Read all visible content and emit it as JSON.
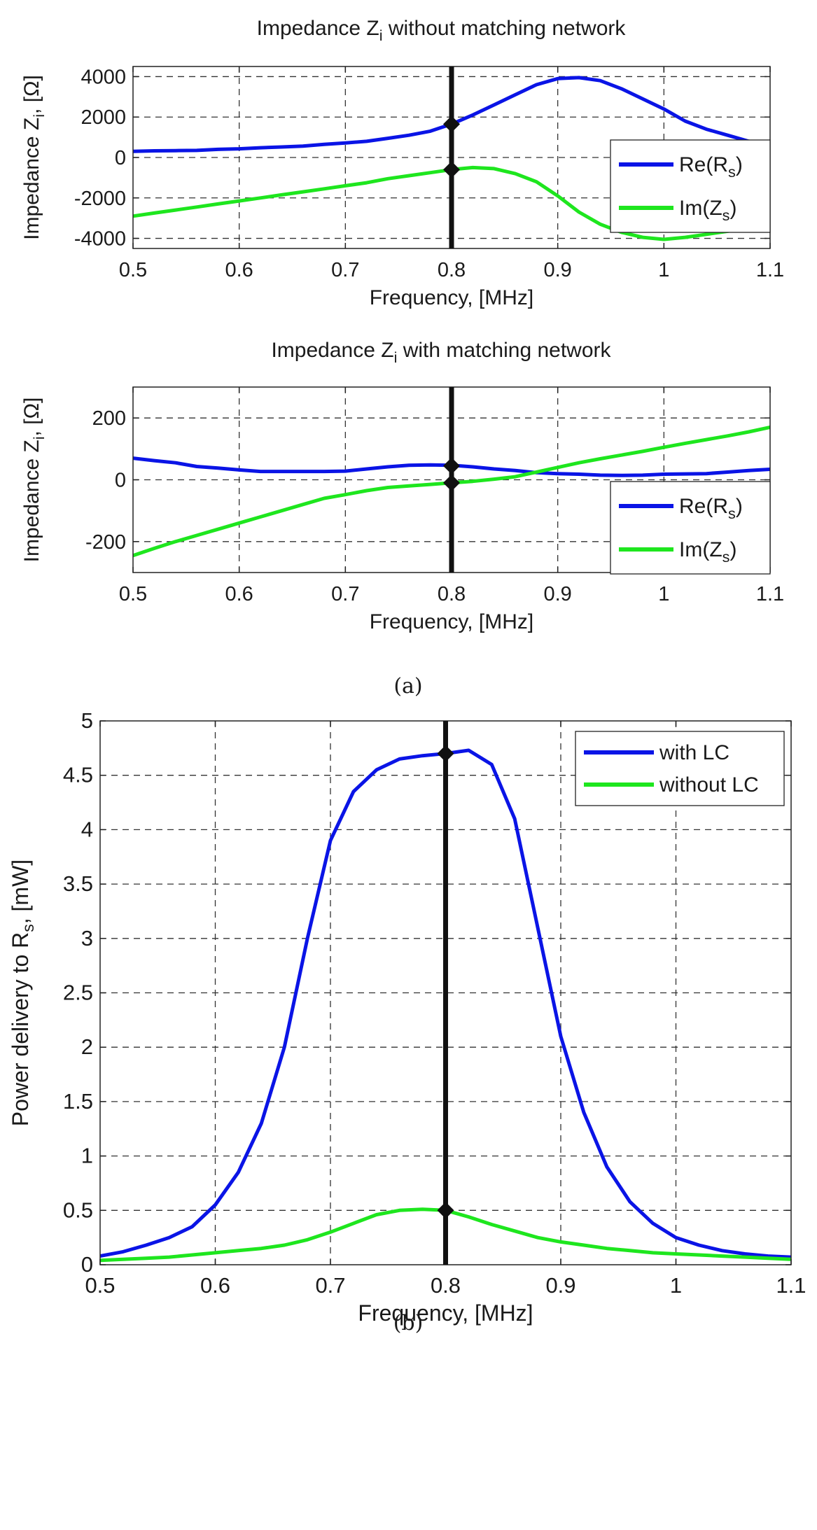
{
  "colors": {
    "re": "#0a14e6",
    "im": "#1ee61e",
    "marker": "#111111"
  },
  "chart_data": [
    {
      "type": "line",
      "title": {
        "pre": "Impedance Z",
        "sub": "i",
        "post": " without matching network"
      },
      "xlabel": "Frequency, [MHz]",
      "ylabel": {
        "pre": "Impedance Z",
        "sub": "i",
        "post": ", [Ω]"
      },
      "xlim": [
        0.5,
        1.1
      ],
      "ylim": [
        -4500,
        4500
      ],
      "xticks": [
        0.5,
        0.6,
        0.7,
        0.8,
        0.9,
        1,
        1.1
      ],
      "xtick_labels": [
        "0.5",
        "0.6",
        "0.7",
        "0.8",
        "0.9",
        "1",
        "1.1"
      ],
      "yticks": [
        4000,
        2000,
        0,
        -2000,
        -4000
      ],
      "ytick_labels": [
        "4000",
        "2000",
        "0",
        "-2000",
        "-4000"
      ],
      "grid": true,
      "legend_position": "lower-right",
      "vline_x": 0.8,
      "markers": [
        {
          "x": 0.8,
          "y": 1650
        },
        {
          "x": 0.8,
          "y": -600
        }
      ],
      "series": [
        {
          "name": {
            "pre": "Re(R",
            "sub": "s",
            "post": ")"
          },
          "color": "#0a14e6",
          "x": [
            0.5,
            0.52,
            0.54,
            0.56,
            0.58,
            0.6,
            0.62,
            0.64,
            0.66,
            0.68,
            0.7,
            0.72,
            0.74,
            0.76,
            0.78,
            0.8,
            0.82,
            0.84,
            0.86,
            0.88,
            0.9,
            0.92,
            0.94,
            0.96,
            0.98,
            1.0,
            1.02,
            1.04,
            1.06,
            1.08,
            1.1
          ],
          "y": [
            300,
            330,
            340,
            350,
            400,
            430,
            480,
            520,
            560,
            650,
            720,
            800,
            950,
            1100,
            1300,
            1650,
            2100,
            2600,
            3100,
            3600,
            3900,
            3950,
            3800,
            3400,
            2900,
            2400,
            1800,
            1400,
            1100,
            800,
            650
          ]
        },
        {
          "name": {
            "pre": "Im(Z",
            "sub": "s",
            "post": ")"
          },
          "color": "#1ee61e",
          "x": [
            0.5,
            0.52,
            0.54,
            0.56,
            0.58,
            0.6,
            0.62,
            0.64,
            0.66,
            0.68,
            0.7,
            0.72,
            0.74,
            0.76,
            0.78,
            0.8,
            0.82,
            0.84,
            0.86,
            0.88,
            0.9,
            0.92,
            0.94,
            0.96,
            0.98,
            1.0,
            1.02,
            1.04,
            1.06,
            1.08,
            1.1
          ],
          "y": [
            -2900,
            -2750,
            -2600,
            -2450,
            -2300,
            -2150,
            -2000,
            -1850,
            -1700,
            -1550,
            -1400,
            -1250,
            -1050,
            -900,
            -750,
            -600,
            -500,
            -550,
            -800,
            -1200,
            -1900,
            -2700,
            -3300,
            -3700,
            -3950,
            -4050,
            -3950,
            -3800,
            -3650,
            -3500,
            -3400
          ]
        }
      ]
    },
    {
      "type": "line",
      "title": {
        "pre": "Impedance Z",
        "sub": "i",
        "post": " with matching network"
      },
      "xlabel": "Frequency, [MHz]",
      "ylabel": {
        "pre": "Impedance Z",
        "sub": "i",
        "post": ", [Ω]"
      },
      "xlim": [
        0.5,
        1.1
      ],
      "ylim": [
        -300,
        300
      ],
      "xticks": [
        0.5,
        0.6,
        0.7,
        0.8,
        0.9,
        1,
        1.1
      ],
      "xtick_labels": [
        "0.5",
        "0.6",
        "0.7",
        "0.8",
        "0.9",
        "1",
        "1.1"
      ],
      "yticks": [
        200,
        0,
        -200
      ],
      "ytick_labels": [
        "200",
        "0",
        "-200"
      ],
      "grid": true,
      "legend_position": "lower-right",
      "vline_x": 0.8,
      "markers": [
        {
          "x": 0.8,
          "y": 45
        },
        {
          "x": 0.8,
          "y": -10
        }
      ],
      "series": [
        {
          "name": {
            "pre": "Re(R",
            "sub": "s",
            "post": ")"
          },
          "color": "#0a14e6",
          "x": [
            0.5,
            0.52,
            0.54,
            0.56,
            0.58,
            0.6,
            0.62,
            0.64,
            0.66,
            0.68,
            0.7,
            0.72,
            0.74,
            0.76,
            0.78,
            0.8,
            0.82,
            0.84,
            0.86,
            0.88,
            0.9,
            0.92,
            0.94,
            0.96,
            0.98,
            1.0,
            1.02,
            1.04,
            1.06,
            1.08,
            1.1
          ],
          "y": [
            70,
            62,
            55,
            43,
            38,
            32,
            27,
            27,
            27,
            27,
            28,
            35,
            42,
            47,
            48,
            47,
            42,
            35,
            30,
            23,
            20,
            18,
            15,
            14,
            15,
            18,
            19,
            20,
            25,
            30,
            34
          ]
        },
        {
          "name": {
            "pre": "Im(Z",
            "sub": "s",
            "post": ")"
          },
          "color": "#1ee61e",
          "x": [
            0.5,
            0.52,
            0.54,
            0.56,
            0.58,
            0.6,
            0.62,
            0.64,
            0.66,
            0.68,
            0.7,
            0.72,
            0.74,
            0.76,
            0.78,
            0.8,
            0.82,
            0.84,
            0.86,
            0.88,
            0.9,
            0.92,
            0.94,
            0.96,
            0.98,
            1.0,
            1.02,
            1.04,
            1.06,
            1.08,
            1.1
          ],
          "y": [
            -245,
            -222,
            -200,
            -180,
            -160,
            -140,
            -120,
            -100,
            -80,
            -60,
            -48,
            -35,
            -25,
            -20,
            -15,
            -10,
            -5,
            2,
            10,
            25,
            40,
            55,
            68,
            80,
            92,
            105,
            118,
            130,
            142,
            155,
            170
          ]
        }
      ]
    },
    {
      "type": "line",
      "title": {
        "pre": "",
        "sub": "",
        "post": ""
      },
      "xlabel": "Frequency, [MHz]",
      "ylabel": {
        "pre": "Power delivery to R",
        "sub": "s",
        "post": ", [mW]"
      },
      "xlim": [
        0.5,
        1.1
      ],
      "ylim": [
        0,
        5
      ],
      "xticks": [
        0.5,
        0.6,
        0.7,
        0.8,
        0.9,
        1,
        1.1
      ],
      "xtick_labels": [
        "0.5",
        "0.6",
        "0.7",
        "0.8",
        "0.9",
        "1",
        "1.1"
      ],
      "yticks": [
        5,
        4.5,
        4,
        3.5,
        3,
        2.5,
        2,
        1.5,
        1,
        0.5,
        0
      ],
      "ytick_labels": [
        "5",
        "4.5",
        "4",
        "3.5",
        "3",
        "2.5",
        "2",
        "1.5",
        "1",
        "0.5",
        "0"
      ],
      "grid": true,
      "legend_position": "top-right",
      "vline_x": 0.8,
      "markers": [
        {
          "x": 0.8,
          "y": 4.7
        },
        {
          "x": 0.8,
          "y": 0.5
        }
      ],
      "series": [
        {
          "name": {
            "pre": "with LC",
            "sub": "",
            "post": ""
          },
          "color": "#0a14e6",
          "x": [
            0.5,
            0.52,
            0.54,
            0.56,
            0.58,
            0.6,
            0.62,
            0.64,
            0.66,
            0.68,
            0.7,
            0.72,
            0.74,
            0.76,
            0.78,
            0.8,
            0.82,
            0.84,
            0.86,
            0.88,
            0.9,
            0.92,
            0.94,
            0.96,
            0.98,
            1.0,
            1.02,
            1.04,
            1.06,
            1.08,
            1.1
          ],
          "y": [
            0.08,
            0.12,
            0.18,
            0.25,
            0.35,
            0.55,
            0.85,
            1.3,
            2.0,
            3.0,
            3.9,
            4.35,
            4.55,
            4.65,
            4.68,
            4.7,
            4.73,
            4.6,
            4.1,
            3.1,
            2.1,
            1.4,
            0.9,
            0.58,
            0.38,
            0.25,
            0.18,
            0.13,
            0.1,
            0.08,
            0.07
          ]
        },
        {
          "name": {
            "pre": "without LC",
            "sub": "",
            "post": ""
          },
          "color": "#1ee61e",
          "x": [
            0.5,
            0.52,
            0.54,
            0.56,
            0.58,
            0.6,
            0.62,
            0.64,
            0.66,
            0.68,
            0.7,
            0.72,
            0.74,
            0.76,
            0.78,
            0.8,
            0.82,
            0.84,
            0.86,
            0.88,
            0.9,
            0.92,
            0.94,
            0.96,
            0.98,
            1.0,
            1.02,
            1.04,
            1.06,
            1.08,
            1.1
          ],
          "y": [
            0.04,
            0.05,
            0.06,
            0.07,
            0.09,
            0.11,
            0.13,
            0.15,
            0.18,
            0.23,
            0.3,
            0.38,
            0.46,
            0.5,
            0.51,
            0.5,
            0.44,
            0.37,
            0.31,
            0.25,
            0.21,
            0.18,
            0.15,
            0.13,
            0.11,
            0.1,
            0.09,
            0.08,
            0.07,
            0.06,
            0.05
          ]
        }
      ]
    }
  ],
  "captions": {
    "a": "(a)",
    "b": "(b)"
  }
}
